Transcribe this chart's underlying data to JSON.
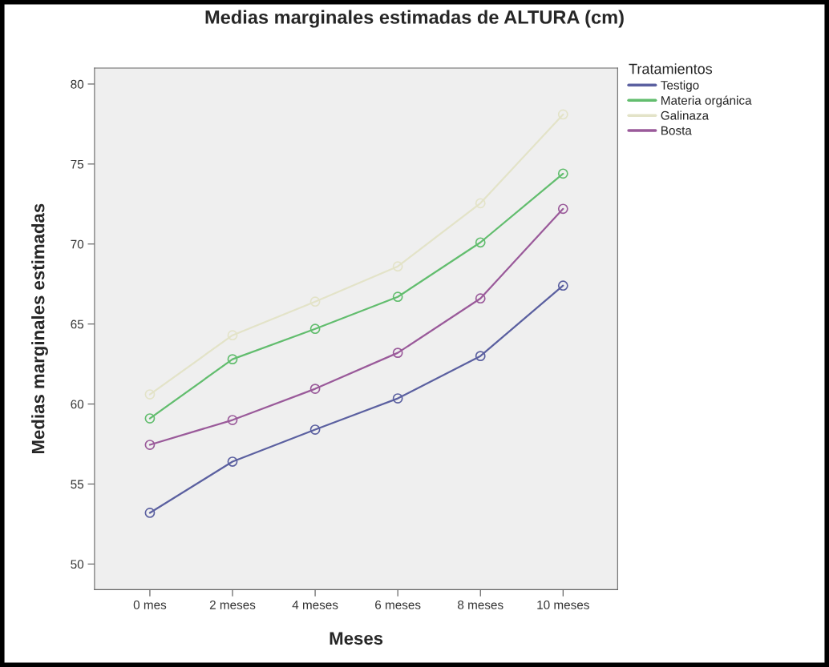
{
  "chart_data": {
    "type": "line",
    "title": "Medias marginales estimadas de ALTURA (cm)",
    "xlabel": "Meses",
    "ylabel": "Medias marginales estimadas",
    "legend_title": "Tratamientos",
    "categories": [
      "0 mes",
      "2 meses",
      "4 meses",
      "6 meses",
      "8 meses",
      "10 meses"
    ],
    "series": [
      {
        "name": "Testigo",
        "color": "#5b60a0",
        "values": [
          53.2,
          56.4,
          58.4,
          60.35,
          63.0,
          67.4
        ]
      },
      {
        "name": "Materia orgánica",
        "color": "#62bd6e",
        "values": [
          59.1,
          62.8,
          64.7,
          66.7,
          70.1,
          74.4
        ]
      },
      {
        "name": "Galinaza",
        "color": "#e3e3c8",
        "values": [
          60.6,
          64.3,
          66.4,
          68.6,
          72.55,
          78.1
        ]
      },
      {
        "name": "Bosta",
        "color": "#9a5a9a",
        "values": [
          57.45,
          59.0,
          60.95,
          63.2,
          66.6,
          72.2
        ]
      }
    ],
    "ylim": [
      48.4,
      81
    ],
    "yticks": [
      50,
      55,
      60,
      65,
      70,
      75,
      80
    ],
    "grid": false,
    "legend": "top right",
    "marker": "circle",
    "line_style": "solid"
  }
}
